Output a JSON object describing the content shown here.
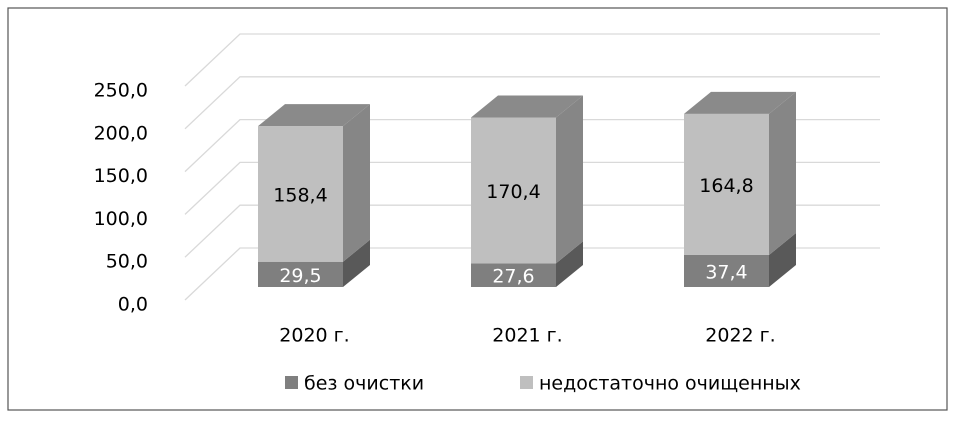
{
  "chart_data": {
    "type": "bar3d_stacked",
    "categories": [
      "2020 г.",
      "2021 г.",
      "2022 г."
    ],
    "series": [
      {
        "name": "без очистки",
        "color": "#7f7f7f",
        "values": [
          29.5,
          27.6,
          37.4
        ],
        "value_labels": [
          "29,5",
          "27,6",
          "37,4"
        ]
      },
      {
        "name": "недостаточно очищенных",
        "color": "#bfbfbf",
        "values": [
          158.4,
          170.4,
          164.8
        ],
        "value_labels": [
          "158,4",
          "170,4",
          "164,8"
        ]
      }
    ],
    "ylim": [
      0,
      250
    ],
    "yticks": [
      {
        "value": 0,
        "label": "0,0"
      },
      {
        "value": 50,
        "label": "50,0"
      },
      {
        "value": 100,
        "label": "100,0"
      },
      {
        "value": 150,
        "label": "150,0"
      },
      {
        "value": 200,
        "label": "200,0"
      },
      {
        "value": 250,
        "label": "250,0"
      }
    ],
    "grid": true,
    "legend": "bottom"
  }
}
